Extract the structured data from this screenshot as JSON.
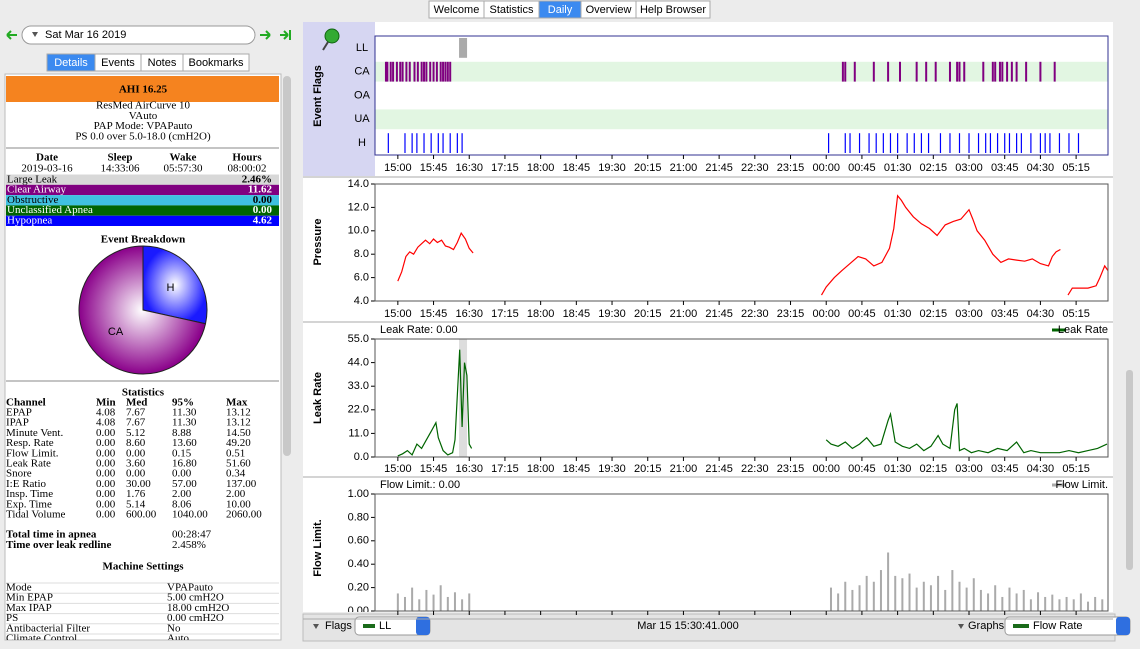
{
  "tabs": [
    "Welcome",
    "Statistics",
    "Daily",
    "Overview",
    "Help Browser"
  ],
  "date": "Sat Mar 16 2019",
  "subtabs": [
    "Details",
    "Events",
    "Notes",
    "Bookmarks"
  ],
  "ahi": "AHI 16.25",
  "machine": [
    "ResMed AirCurve 10",
    "VAuto",
    "PAP Mode: VPAPauto",
    "PS 0.0 over 5.0-18.0 (cmH2O)"
  ],
  "session": {
    "headers": [
      "Date",
      "Sleep",
      "Wake",
      "Hours"
    ],
    "values": [
      "2019-03-16",
      "14:33:06",
      "05:57:30",
      "08:00:02"
    ]
  },
  "indices": [
    [
      "Large Leak",
      "2.46%"
    ],
    [
      "Clear Airway",
      "11.62"
    ],
    [
      "Obstructive",
      "0.00"
    ],
    [
      "Unclassified Apnea",
      "0.00"
    ],
    [
      "Hypopnea",
      "4.62"
    ]
  ],
  "breakdown": {
    "title": "Event Breakdown",
    "labels": [
      "H",
      "CA"
    ],
    "values": [
      4.62,
      11.62
    ]
  },
  "statistics": {
    "title": "Statistics",
    "headers": [
      "Channel",
      "Min",
      "Med",
      "95%",
      "Max"
    ],
    "rows": [
      [
        "EPAP",
        "4.08",
        "7.67",
        "11.30",
        "13.12"
      ],
      [
        "IPAP",
        "4.08",
        "7.67",
        "11.30",
        "13.12"
      ],
      [
        "Minute Vent.",
        "0.00",
        "5.12",
        "8.88",
        "14.50"
      ],
      [
        "Resp. Rate",
        "0.00",
        "8.60",
        "13.60",
        "49.20"
      ],
      [
        "Flow Limit.",
        "0.00",
        "0.00",
        "0.15",
        "0.51"
      ],
      [
        "Leak Rate",
        "0.00",
        "3.60",
        "16.80",
        "51.60"
      ],
      [
        "Snore",
        "0.00",
        "0.00",
        "0.00",
        "0.34"
      ],
      [
        "I:E Ratio",
        "0.00",
        "30.00",
        "57.00",
        "137.00"
      ],
      [
        "Insp. Time",
        "0.00",
        "1.76",
        "2.00",
        "2.00"
      ],
      [
        "Exp. Time",
        "0.00",
        "5.14",
        "8.06",
        "10.00"
      ],
      [
        "Tidal Volume",
        "0.00",
        "600.00",
        "1040.00",
        "2060.00"
      ]
    ]
  },
  "totals": [
    [
      "Total time in apnea",
      "00:28:47"
    ],
    [
      "Time over leak redline",
      "2.458%"
    ]
  ],
  "settings": {
    "title": "Machine Settings",
    "rows": [
      [
        "Mode",
        "VPAPauto"
      ],
      [
        "Min EPAP",
        "5.00 cmH2O"
      ],
      [
        "Max IPAP",
        "18.00 cmH2O"
      ],
      [
        "PS",
        "0.00 cmH2O"
      ],
      [
        "Antibacterial Filter",
        "No"
      ],
      [
        "Climate Control",
        "Auto"
      ]
    ]
  },
  "graphs": {
    "time_axis": {
      "xlim": [
        14.52,
        29.92
      ],
      "xticks": [
        {
          "value": 15,
          "label": "15:00"
        },
        {
          "value": 15.75,
          "label": "15:45"
        },
        {
          "value": 16.5,
          "label": "16:30"
        },
        {
          "value": 17.25,
          "label": "17:15"
        },
        {
          "value": 18,
          "label": "18:00"
        },
        {
          "value": 18.75,
          "label": "18:45"
        },
        {
          "value": 19.5,
          "label": "19:30"
        },
        {
          "value": 20.25,
          "label": "20:15"
        },
        {
          "value": 21,
          "label": "21:00"
        },
        {
          "value": 21.75,
          "label": "21:45"
        },
        {
          "value": 22.5,
          "label": "22:30"
        },
        {
          "value": 23.25,
          "label": "23:15"
        },
        {
          "value": 24,
          "label": "00:00"
        },
        {
          "value": 24.75,
          "label": "00:45"
        },
        {
          "value": 25.5,
          "label": "01:30"
        },
        {
          "value": 26.25,
          "label": "02:15"
        },
        {
          "value": 27,
          "label": "03:00"
        },
        {
          "value": 27.75,
          "label": "03:45"
        },
        {
          "value": 28.5,
          "label": "04:30"
        },
        {
          "value": 29.25,
          "label": "05:15"
        }
      ]
    },
    "flags": {
      "title": "Event Flags",
      "rows": [
        "LL",
        "CA",
        "OA",
        "UA",
        "H"
      ],
      "colors": [
        "#aaaaaa",
        "#800080",
        "#40c0e0",
        "#006400",
        "#0000ff"
      ],
      "events": [
        [
          16.37
        ],
        [
          14.75,
          14.78,
          14.85,
          14.9,
          14.98,
          15.05,
          15.1,
          15.18,
          15.25,
          15.35,
          15.42,
          15.5,
          15.55,
          15.6,
          15.68,
          15.75,
          15.82,
          15.9,
          15.95,
          16.0,
          16.05,
          16.1,
          24.35,
          24.4,
          24.6,
          25.0,
          25.3,
          25.55,
          25.9,
          26.1,
          26.3,
          26.6,
          26.75,
          26.8,
          26.9,
          27.3,
          27.5,
          27.55,
          27.65,
          27.7,
          27.8,
          27.9,
          28.0,
          28.2,
          28.5,
          28.8
        ],
        [],
        [],
        [
          14.8,
          15.15,
          15.3,
          15.4,
          15.55,
          15.7,
          15.85,
          15.95,
          16.1,
          16.25,
          16.35,
          24.05,
          24.4,
          24.5,
          24.7,
          24.9,
          25.05,
          25.2,
          25.35,
          25.5,
          25.7,
          25.85,
          26.0,
          26.15,
          26.4,
          26.6,
          26.8,
          27.0,
          27.2,
          27.35,
          27.45,
          27.6,
          27.75,
          27.85,
          28.0,
          28.1,
          28.3,
          28.5,
          28.6,
          28.7,
          28.9,
          29.1,
          29.3
        ]
      ]
    },
    "pressure": {
      "type": "line",
      "title": "Pressure",
      "color": "#ff0000",
      "ylim": [
        4,
        14
      ],
      "yticks": [
        {
          "value": 4,
          "label": "4.0"
        },
        {
          "value": 6,
          "label": "6.0"
        },
        {
          "value": 8,
          "label": "8.0"
        },
        {
          "value": 10,
          "label": "10.0"
        },
        {
          "value": 12,
          "label": "12.0"
        },
        {
          "value": 14,
          "label": "14.0"
        }
      ],
      "x": [
        15.0,
        15.08,
        15.17,
        15.25,
        15.33,
        15.42,
        15.5,
        15.58,
        15.67,
        15.75,
        15.83,
        15.92,
        16.0,
        16.08,
        16.17,
        16.25,
        16.33,
        16.42,
        16.5,
        16.58,
        20.0,
        23.9,
        24.0,
        24.17,
        24.33,
        24.5,
        24.67,
        24.83,
        25.0,
        25.17,
        25.33,
        25.42,
        25.5,
        25.58,
        25.67,
        25.83,
        26.0,
        26.17,
        26.33,
        26.5,
        26.67,
        26.83,
        27.0,
        27.08,
        27.17,
        27.33,
        27.5,
        27.67,
        27.83,
        28.0,
        28.17,
        28.33,
        28.5,
        28.67,
        28.75,
        28.83,
        28.92,
        29.0,
        29.08,
        29.17,
        29.5,
        29.67,
        29.75,
        29.85,
        29.92
      ],
      "values": [
        5.7,
        6.5,
        7.8,
        8.2,
        8.0,
        8.6,
        8.9,
        9.2,
        8.9,
        9.3,
        9.0,
        9.2,
        8.7,
        8.6,
        8.4,
        9.0,
        9.8,
        9.3,
        8.5,
        8.1,
        null,
        4.5,
        5.2,
        6.0,
        6.6,
        7.2,
        7.8,
        7.6,
        7.0,
        7.3,
        8.5,
        10.2,
        13.0,
        12.6,
        12.0,
        11.2,
        10.6,
        10.2,
        9.6,
        10.5,
        10.8,
        11.0,
        11.8,
        11.0,
        10.0,
        9.2,
        8.0,
        7.3,
        7.6,
        7.5,
        7.4,
        7.6,
        7.2,
        7.0,
        7.8,
        8.2,
        8.4,
        null,
        4.5,
        5.1,
        5.1,
        5.3,
        6.0,
        7.0,
        6.6
      ]
    },
    "leak": {
      "type": "line",
      "title": "Leak Rate",
      "header": "Leak Rate: 0.00",
      "legend": "Leak Rate",
      "color": "#006400",
      "ylim": [
        0,
        55
      ],
      "yticks": [
        {
          "value": 0,
          "label": "0.0"
        },
        {
          "value": 11,
          "label": "11.0"
        },
        {
          "value": 22,
          "label": "22.0"
        },
        {
          "value": 33,
          "label": "33.0"
        },
        {
          "value": 44,
          "label": "44.0"
        },
        {
          "value": 55,
          "label": "55.0"
        }
      ],
      "x": [
        15.0,
        15.1,
        15.2,
        15.3,
        15.4,
        15.5,
        15.6,
        15.7,
        15.8,
        15.85,
        15.95,
        16.05,
        16.15,
        16.2,
        16.3,
        16.35,
        16.4,
        16.45,
        16.5,
        16.55,
        20.0,
        24.0,
        24.1,
        24.25,
        24.4,
        24.55,
        24.7,
        24.85,
        25.0,
        25.15,
        25.3,
        25.35,
        25.45,
        25.6,
        25.75,
        25.9,
        26.05,
        26.2,
        26.35,
        26.45,
        26.6,
        26.7,
        26.75,
        26.8,
        26.9,
        27.05,
        27.2,
        27.4,
        27.6,
        27.8,
        28.0,
        28.15,
        28.3,
        28.5,
        28.7,
        28.9,
        29.1,
        29.3,
        29.5,
        29.7,
        29.9
      ],
      "values": [
        0.5,
        1.5,
        3,
        1,
        6,
        4,
        8,
        12,
        16,
        9,
        3,
        1,
        2,
        8,
        50,
        14,
        44,
        38,
        6,
        4,
        null,
        8,
        6,
        5,
        7,
        4,
        6,
        9,
        5,
        6,
        17,
        20,
        7,
        5,
        4,
        6,
        3,
        5,
        10,
        6,
        4,
        22,
        25,
        3,
        4,
        2,
        3,
        2,
        4,
        3,
        7,
        2,
        3,
        2,
        2,
        2,
        3,
        2,
        3,
        4,
        6
      ]
    },
    "flow": {
      "type": "bar",
      "title": "Flow Limit.",
      "header": "Flow Limit.: 0.00",
      "legend": "Flow Limit.",
      "color": "#aaaaaa",
      "ylim": [
        0,
        1
      ],
      "yticks": [
        {
          "value": 0,
          "label": "0.00"
        },
        {
          "value": 0.2,
          "label": "0.20"
        },
        {
          "value": 0.4,
          "label": "0.40"
        },
        {
          "value": 0.6,
          "label": "0.60"
        },
        {
          "value": 0.8,
          "label": "0.80"
        },
        {
          "value": 1,
          "label": "1.00"
        }
      ],
      "x": [
        15.0,
        15.15,
        15.3,
        15.45,
        15.6,
        15.75,
        15.9,
        16.05,
        16.2,
        16.35,
        16.5,
        24.1,
        24.25,
        24.4,
        24.55,
        24.7,
        24.85,
        25.0,
        25.15,
        25.3,
        25.45,
        25.6,
        25.75,
        25.9,
        26.05,
        26.2,
        26.35,
        26.5,
        26.65,
        26.8,
        26.95,
        27.1,
        27.25,
        27.4,
        27.55,
        27.7,
        27.85,
        28.0,
        28.15,
        28.3,
        28.45,
        28.6,
        28.75,
        28.9,
        29.05,
        29.2,
        29.35,
        29.5,
        29.65,
        29.8
      ],
      "values": [
        0.15,
        0.12,
        0.2,
        0.1,
        0.18,
        0.14,
        0.22,
        0.12,
        0.16,
        0.1,
        0.15,
        0.2,
        0.15,
        0.25,
        0.18,
        0.22,
        0.3,
        0.25,
        0.35,
        0.5,
        0.3,
        0.28,
        0.32,
        0.2,
        0.25,
        0.22,
        0.3,
        0.18,
        0.35,
        0.25,
        0.2,
        0.28,
        0.18,
        0.15,
        0.22,
        0.12,
        0.2,
        0.15,
        0.18,
        0.1,
        0.16,
        0.12,
        0.14,
        0.1,
        0.12,
        0.1,
        0.15,
        0.08,
        0.12,
        0.1
      ]
    }
  },
  "footer": {
    "flags_label": "Flags",
    "flags_value": "LL",
    "time": "Mar 15 15:30:41.000",
    "graphs_label": "Graphs",
    "graphs_value": "Flow Rate"
  }
}
